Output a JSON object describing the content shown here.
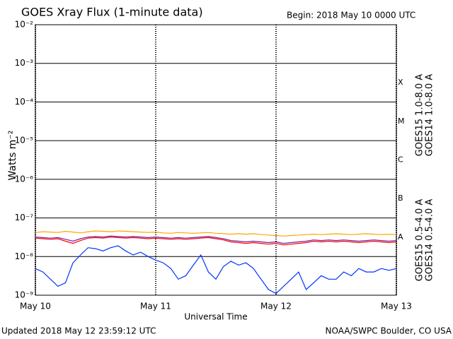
{
  "chart_data": {
    "type": "line",
    "title": "GOES Xray Flux (1-minute data)",
    "subtitle": "Begin:  2018 May 10 0000 UTC",
    "y_label": "Watts m⁻²",
    "x_label": "Universal Time",
    "updated": "Updated 2018 May 12 23:59:12 UTC",
    "source": "NOAA/SWPC Boulder, CO USA",
    "log_y": true,
    "grid": true,
    "xlim": [
      0,
      3
    ],
    "xticks": [
      {
        "value": 0,
        "label": "May 10"
      },
      {
        "value": 1,
        "label": "May 11"
      },
      {
        "value": 2,
        "label": "May 12"
      },
      {
        "value": 3,
        "label": "May 13"
      }
    ],
    "ylim": [
      1e-09,
      0.01
    ],
    "yticks": [
      {
        "value": 1e-09,
        "label": "10⁻⁹"
      },
      {
        "value": 1e-08,
        "label": "10⁻⁸"
      },
      {
        "value": 1e-07,
        "label": "10⁻⁷"
      },
      {
        "value": 1e-06,
        "label": "10⁻⁶"
      },
      {
        "value": 1e-05,
        "label": "10⁻⁵"
      },
      {
        "value": 0.0001,
        "label": "10⁻⁴"
      },
      {
        "value": 0.001,
        "label": "10⁻³"
      },
      {
        "value": 0.01,
        "label": "10⁻²"
      }
    ],
    "flare_classes": [
      {
        "label": "A",
        "value": 1e-08
      },
      {
        "label": "B",
        "value": 1e-07
      },
      {
        "label": "C",
        "value": 1e-06
      },
      {
        "label": "M",
        "value": 1e-05
      },
      {
        "label": "X",
        "value": 0.0001
      }
    ],
    "x": [
      0,
      0.0625,
      0.125,
      0.1875,
      0.25,
      0.3125,
      0.375,
      0.4375,
      0.5,
      0.5625,
      0.625,
      0.6875,
      0.75,
      0.8125,
      0.875,
      0.9375,
      1,
      1.0625,
      1.125,
      1.1875,
      1.25,
      1.3125,
      1.375,
      1.4375,
      1.5,
      1.5625,
      1.625,
      1.6875,
      1.75,
      1.8125,
      1.875,
      1.9375,
      2,
      2.0625,
      2.125,
      2.1875,
      2.25,
      2.3125,
      2.375,
      2.4375,
      2.5,
      2.5625,
      2.625,
      2.6875,
      2.75,
      2.8125,
      2.875,
      2.9375,
      3
    ],
    "series": [
      {
        "name": "GOES15 1.0-8.0 A",
        "color": "#ff0000",
        "values": [
          3e-08,
          2.9e-08,
          2.8e-08,
          2.9e-08,
          2.5e-08,
          2.2e-08,
          2.6e-08,
          3e-08,
          3.1e-08,
          3e-08,
          3.2e-08,
          3.1e-08,
          3e-08,
          3.1e-08,
          3e-08,
          2.9e-08,
          3e-08,
          2.9e-08,
          2.8e-08,
          2.9e-08,
          2.8e-08,
          2.9e-08,
          3e-08,
          3.1e-08,
          2.9e-08,
          2.7e-08,
          2.4e-08,
          2.3e-08,
          2.2e-08,
          2.3e-08,
          2.2e-08,
          2.1e-08,
          2.2e-08,
          2e-08,
          2.1e-08,
          2.2e-08,
          2.3e-08,
          2.5e-08,
          2.4e-08,
          2.5e-08,
          2.4e-08,
          2.5e-08,
          2.4e-08,
          2.3e-08,
          2.4e-08,
          2.5e-08,
          2.4e-08,
          2.3e-08,
          2.4e-08
        ]
      },
      {
        "name": "GOES14 1.0-8.0 A",
        "color": "#ffa500",
        "values": [
          4.2e-08,
          4.4e-08,
          4.3e-08,
          4.2e-08,
          4.5e-08,
          4.3e-08,
          4.1e-08,
          4.4e-08,
          4.6e-08,
          4.5e-08,
          4.4e-08,
          4.6e-08,
          4.5e-08,
          4.4e-08,
          4.3e-08,
          4.2e-08,
          4.3e-08,
          4.1e-08,
          4e-08,
          4.2e-08,
          4.1e-08,
          4e-08,
          4.1e-08,
          4.2e-08,
          4e-08,
          3.9e-08,
          3.8e-08,
          3.9e-08,
          3.8e-08,
          3.9e-08,
          3.7e-08,
          3.6e-08,
          3.5e-08,
          3.4e-08,
          3.5e-08,
          3.6e-08,
          3.7e-08,
          3.8e-08,
          3.7e-08,
          3.8e-08,
          3.9e-08,
          3.8e-08,
          3.7e-08,
          3.8e-08,
          3.9e-08,
          3.8e-08,
          3.7e-08,
          3.8e-08,
          3.7e-08
        ]
      },
      {
        "name": "GOES15 0.5-4.0 A",
        "color": "#0033ff",
        "values": [
          4.9e-09,
          4e-09,
          2.6e-09,
          1.7e-09,
          2.1e-09,
          6.9e-09,
          1.1e-08,
          1.7e-08,
          1.6e-08,
          1.4e-08,
          1.7e-08,
          1.9e-08,
          1.4e-08,
          1.1e-08,
          1.3e-08,
          1e-08,
          8.1e-09,
          6.9e-09,
          4.9e-09,
          2.6e-09,
          3.2e-09,
          6e-09,
          1.1e-08,
          4e-09,
          2.6e-09,
          5.5e-09,
          7.6e-09,
          6e-09,
          6.9e-09,
          4.9e-09,
          2.6e-09,
          1.4e-09,
          1.1e-09,
          1.7e-09,
          2.6e-09,
          4e-09,
          1.4e-09,
          2.1e-09,
          3.2e-09,
          2.6e-09,
          2.6e-09,
          4e-09,
          3.2e-09,
          4.9e-09,
          4e-09,
          4e-09,
          4.9e-09,
          4.4e-09,
          4.9e-09
        ]
      },
      {
        "name": "GOES14 0.5-4.0 A",
        "color": "#7a1fa0",
        "values": [
          3.2e-08,
          3.1e-08,
          3e-08,
          3.1e-08,
          2.8e-08,
          2.5e-08,
          2.9e-08,
          3.2e-08,
          3.3e-08,
          3.2e-08,
          3.4e-08,
          3.3e-08,
          3.2e-08,
          3.3e-08,
          3.2e-08,
          3.1e-08,
          3.2e-08,
          3.1e-08,
          3e-08,
          3.1e-08,
          3e-08,
          3.1e-08,
          3.2e-08,
          3.3e-08,
          3.1e-08,
          2.9e-08,
          2.6e-08,
          2.5e-08,
          2.4e-08,
          2.5e-08,
          2.4e-08,
          2.3e-08,
          2.4e-08,
          2.2e-08,
          2.3e-08,
          2.4e-08,
          2.5e-08,
          2.7e-08,
          2.6e-08,
          2.7e-08,
          2.6e-08,
          2.7e-08,
          2.6e-08,
          2.5e-08,
          2.6e-08,
          2.7e-08,
          2.6e-08,
          2.5e-08,
          2.6e-08
        ]
      }
    ]
  }
}
